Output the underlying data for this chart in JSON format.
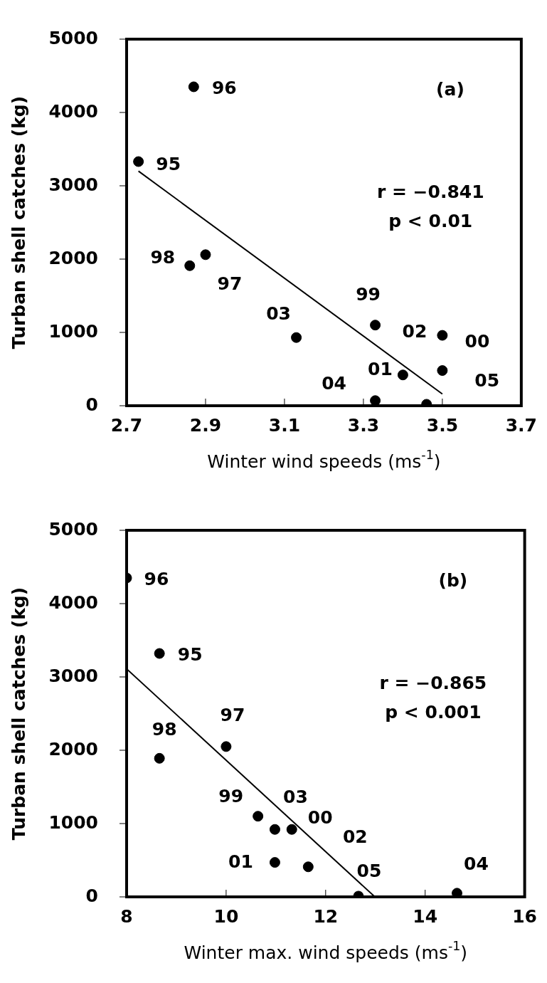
{
  "chart_data": [
    {
      "type": "scatter",
      "xlabel": "Winter wind speeds (ms$^{-1}$)",
      "ylabel": "Turban shell catches (kg)",
      "xlim": [
        2.7,
        3.7
      ],
      "xticks": [
        {
          "value": 2.7,
          "label": "2.7"
        },
        {
          "value": 2.9,
          "label": "2.9"
        },
        {
          "value": 3.1,
          "label": "3.1"
        },
        {
          "value": 3.3,
          "label": "3.3"
        },
        {
          "value": 3.5,
          "label": "3.5"
        },
        {
          "value": 3.7,
          "label": "3.7"
        }
      ],
      "ylim": [
        0,
        5000
      ],
      "yticks": [
        0,
        1000,
        2000,
        3000,
        4000,
        5000
      ],
      "grid": false,
      "legend": false,
      "series": [
        {
          "color": "#000000",
          "marker": "circle",
          "x": [
            2.87,
            2.73,
            2.86,
            2.9,
            3.13,
            3.33,
            3.5,
            3.5,
            3.4,
            3.33,
            3.46
          ],
          "values": [
            4350,
            3330,
            1910,
            2060,
            930,
            1100,
            960,
            480,
            420,
            70,
            20
          ]
        },
        {
          "type": "line",
          "marker": "none",
          "color": "#000000",
          "x": [
            2.73,
            3.5
          ],
          "values": [
            3200,
            160
          ]
        }
      ],
      "annotations": [
        "(a)",
        "r = −0.841",
        "p < 0.01",
        {
          "text": "96",
          "x": 2.87,
          "y": 4350
        },
        {
          "text": "95",
          "x": 2.73,
          "y": 3330
        },
        {
          "text": "98",
          "x": 2.86,
          "y": 1910
        },
        {
          "text": "97",
          "x": 2.9,
          "y": 2060
        },
        {
          "text": "03",
          "x": 3.13,
          "y": 930
        },
        {
          "text": "99",
          "x": 3.33,
          "y": 1100
        },
        {
          "text": "02",
          "x": 3.5,
          "y": 960
        },
        {
          "text": "00",
          "x": 3.5,
          "y": 480
        },
        {
          "text": "01",
          "x": 3.4,
          "y": 420
        },
        {
          "text": "04",
          "x": 3.33,
          "y": 70
        },
        {
          "text": "05",
          "x": 3.46,
          "y": 20
        }
      ]
    },
    {
      "type": "scatter",
      "xlabel": "Winter max. wind speeds (ms$^{-1}$)",
      "ylabel": "Turban shell catches (kg)",
      "xlim": [
        8,
        16
      ],
      "xticks": [
        8,
        10,
        12,
        14,
        16
      ],
      "ylim": [
        0,
        5000
      ],
      "yticks": [
        0,
        1000,
        2000,
        3000,
        4000,
        5000
      ],
      "grid": false,
      "legend": false,
      "series": [
        {
          "color": "#000000",
          "marker": "circle",
          "x": [
            8.0,
            8.66,
            8.66,
            10.0,
            10.64,
            10.98,
            11.32,
            10.98,
            11.65,
            12.66,
            14.64
          ],
          "values": [
            4350,
            3320,
            1890,
            2050,
            1100,
            920,
            920,
            470,
            410,
            10,
            50
          ]
        },
        {
          "type": "line",
          "marker": "none",
          "color": "#000000",
          "x": [
            8.0,
            12.99
          ],
          "values": [
            3110,
            0
          ]
        }
      ],
      "annotations": [
        "(b)",
        "r = −0.865",
        "p < 0.001",
        {
          "text": "96",
          "x": 8.0,
          "y": 4350
        },
        {
          "text": "95",
          "x": 8.66,
          "y": 3320
        },
        {
          "text": "98",
          "x": 8.66,
          "y": 1890
        },
        {
          "text": "97",
          "x": 10.0,
          "y": 2050
        },
        {
          "text": "99",
          "x": 10.64,
          "y": 1100
        },
        {
          "text": "03",
          "x": 10.98,
          "y": 920
        },
        {
          "text": "00",
          "x": 11.32,
          "y": 920
        },
        {
          "text": "02",
          "x": 11.65,
          "y": 410
        },
        {
          "text": "01",
          "x": 10.98,
          "y": 470
        },
        {
          "text": "05",
          "x": 12.66,
          "y": 10
        },
        {
          "text": "04",
          "x": 14.64,
          "y": 50
        }
      ]
    }
  ]
}
